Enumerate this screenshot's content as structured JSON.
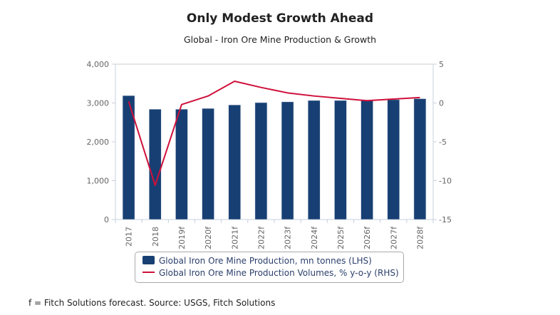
{
  "chart_data": {
    "type": "bar",
    "title": "Only Modest Growth Ahead",
    "subtitle": "Global - Iron Ore Mine Production & Growth",
    "categories": [
      "2017",
      "2018",
      "2019f",
      "2020f",
      "2021f",
      "2022f",
      "2023f",
      "2024f",
      "2025f",
      "2026f",
      "2027f",
      "2028f"
    ],
    "series": [
      {
        "name": "Global Iron Ore Mine Production, mn tonnes (LHS)",
        "type": "bar",
        "axis": "left",
        "color": "#173f73",
        "values": [
          3190,
          2840,
          2840,
          2860,
          2950,
          3010,
          3030,
          3065,
          3065,
          3080,
          3085,
          3110
        ]
      },
      {
        "name": "Global Iron Ore Mine Production Volumes, % y-o-y (RHS)",
        "type": "line",
        "axis": "right",
        "color": "#d0103a",
        "values": [
          0.2,
          -10.6,
          -0.2,
          0.9,
          2.8,
          2.0,
          1.3,
          0.9,
          0.6,
          0.3,
          0.5,
          0.7
        ]
      }
    ],
    "left_axis": {
      "ylim": [
        0,
        4000
      ],
      "ticks": [
        0,
        1000,
        2000,
        3000,
        4000
      ],
      "tick_labels": [
        "0",
        "1,000",
        "2,000",
        "3,000",
        "4,000"
      ]
    },
    "right_axis": {
      "ylim": [
        -15,
        5
      ],
      "ticks": [
        -15,
        -10,
        -5,
        0,
        5
      ],
      "tick_labels": [
        "-15",
        "-10",
        "-5",
        "0",
        "5"
      ]
    },
    "xlabel": "",
    "ylabel": "",
    "grid": false,
    "legend": "bottom-center"
  },
  "footer": "f = Fitch Solutions forecast. Source: USGS, Fitch Solutions"
}
